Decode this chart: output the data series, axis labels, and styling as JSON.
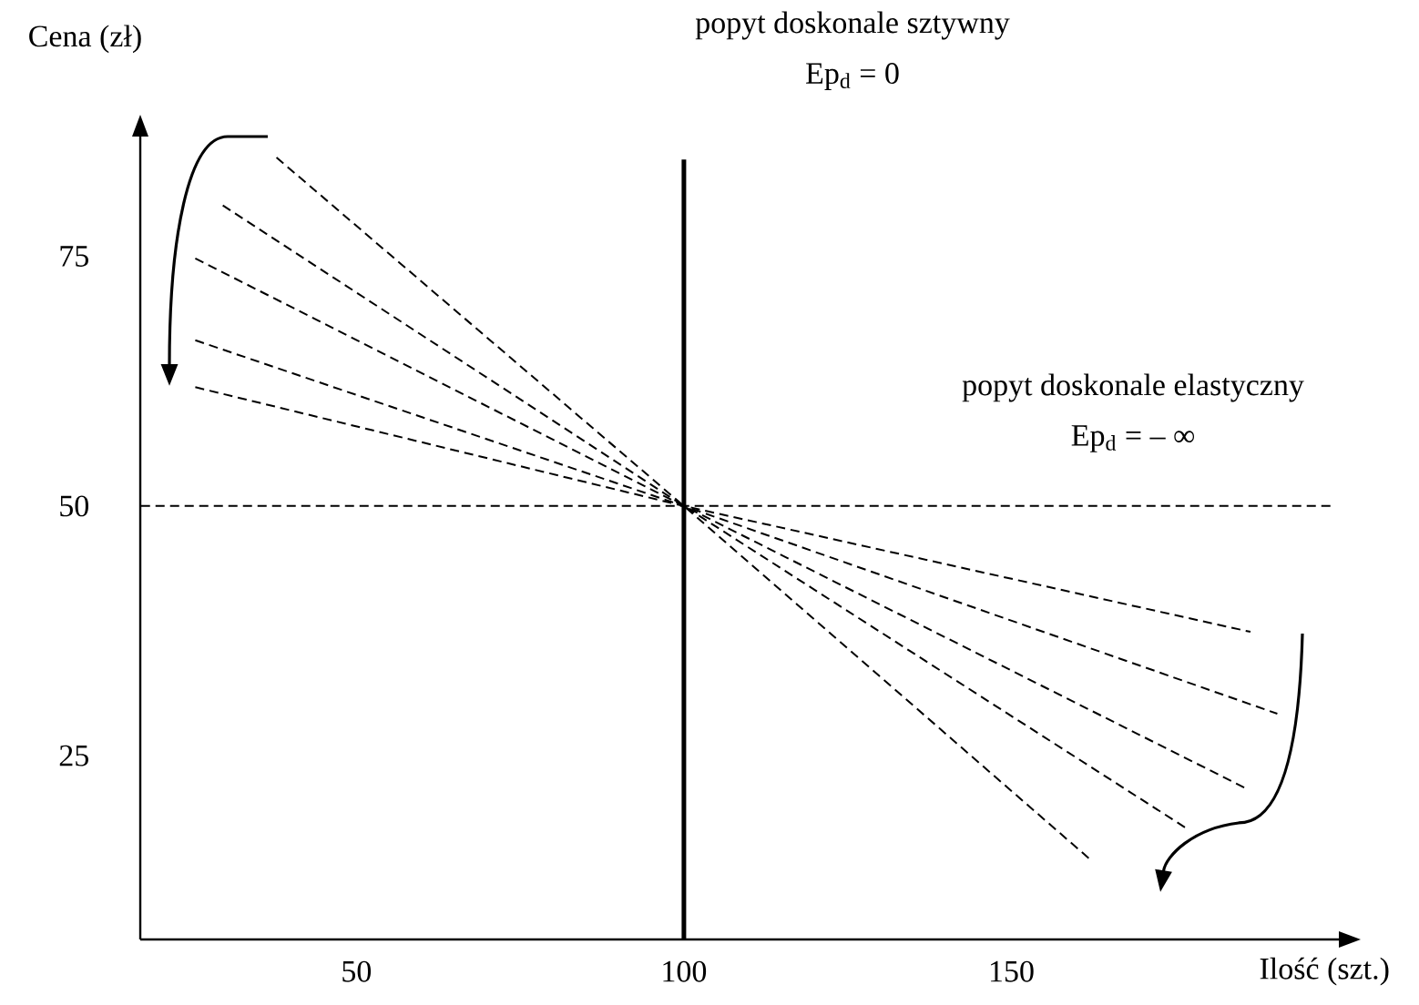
{
  "chart_data": {
    "type": "line",
    "xlabel": "Ilość (szt.)",
    "ylabel": "Cena (zł)",
    "annotations": [
      "popyt doskonale sztywny",
      "Ep$_{d}$ = 0",
      "popyt doskonale elastyczny",
      "Ep$_{d}$ = – ∞"
    ],
    "xlim": [
      17,
      200
    ],
    "ylim": [
      6.6,
      87
    ],
    "xticks": [
      50,
      100,
      150
    ],
    "yticks": [
      25,
      50,
      75
    ],
    "series": [
      {
        "color": "#000000",
        "line_style": "dashed",
        "x": [
          37.8,
          100,
          162.4
        ],
        "values": [
          84.9,
          50,
          14.4
        ]
      },
      {
        "color": "#000000",
        "line_style": "dashed",
        "x": [
          29.6,
          100,
          176.8
        ],
        "values": [
          80.1,
          50,
          17.7
        ]
      },
      {
        "color": "#000000",
        "line_style": "dashed",
        "x": [
          25.4,
          100,
          185.9
        ],
        "values": [
          74.8,
          50,
          21.7
        ]
      },
      {
        "color": "#000000",
        "line_style": "dashed",
        "x": [
          25.4,
          100,
          190.6
        ],
        "values": [
          66.6,
          50,
          29.2
        ]
      },
      {
        "color": "#000000",
        "line_style": "dashed",
        "x": [
          25.4,
          100,
          186.5
        ],
        "values": [
          61.9,
          50,
          37.4
        ]
      },
      {
        "color": "#000000",
        "line_style": "dashed",
        "x": [
          17.1,
          198.9
        ],
        "values": [
          50,
          50
        ]
      },
      {
        "color": "#000000",
        "line_style": "solid",
        "x": [
          100,
          100
        ],
        "values": [
          6.6,
          84.7
        ]
      }
    ]
  }
}
